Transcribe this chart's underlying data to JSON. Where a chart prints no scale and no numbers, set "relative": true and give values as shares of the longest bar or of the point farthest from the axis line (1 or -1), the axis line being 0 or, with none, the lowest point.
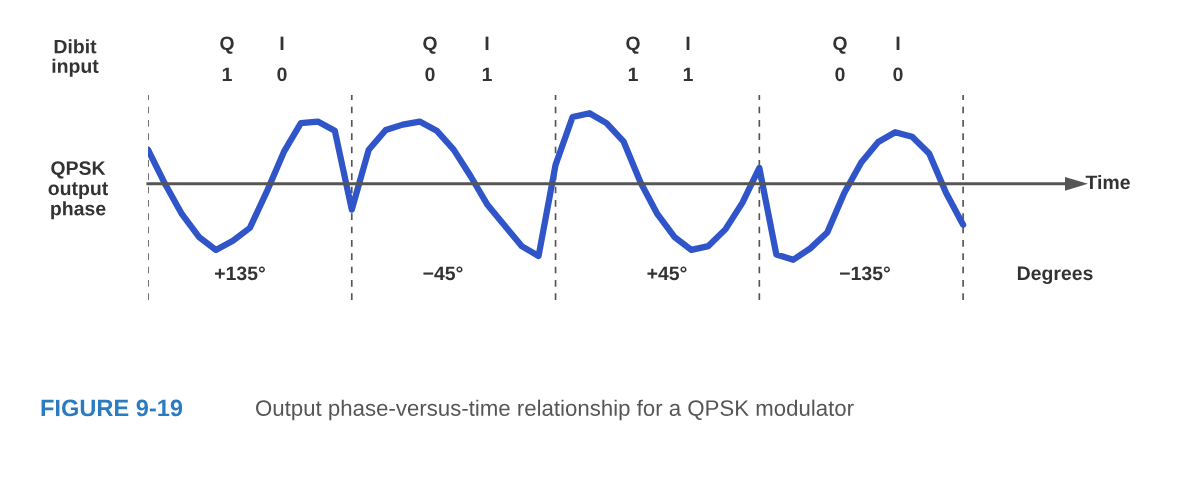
{
  "chart_data": {
    "type": "line",
    "relative": true,
    "title": "FIGURE 9-19",
    "subtitle": "Output phase-versus-time relationship for a QPSK modulator",
    "ylabel": "QPSK\noutput\nphase",
    "tick_labels": false,
    "categories": [
      null,
      null,
      null,
      null,
      null,
      null,
      null,
      null,
      null,
      null,
      null,
      null,
      null,
      null,
      null,
      null,
      null,
      null,
      null,
      null,
      null,
      null,
      null,
      null,
      null,
      null,
      null,
      null,
      null,
      null,
      null,
      null,
      null,
      null,
      null,
      null,
      null,
      null,
      null,
      null,
      null,
      null,
      null,
      null,
      null,
      null,
      null,
      null,
      null
    ],
    "series": [
      {
        "color": "#2f55c8",
        "values": [
          0.45,
          0.0,
          -0.4,
          -0.7,
          -0.87,
          -0.75,
          -0.58,
          -0.1,
          0.42,
          0.8,
          0.82,
          0.7,
          -0.34,
          0.45,
          0.71,
          0.78,
          0.82,
          0.7,
          0.45,
          0.1,
          -0.28,
          -0.55,
          -0.82,
          -0.95,
          0.25,
          0.88,
          0.93,
          0.8,
          0.56,
          0.02,
          -0.4,
          -0.7,
          -0.87,
          -0.82,
          -0.6,
          -0.25,
          0.21,
          -0.93,
          -1.0,
          -0.85,
          -0.64,
          -0.12,
          0.28,
          0.55,
          0.68,
          0.62,
          0.4,
          -0.12,
          -0.54
        ]
      }
    ],
    "grid": "x",
    "annotations": [
      "Dibit\ninput",
      "Q",
      "I",
      "1",
      "0",
      "Q",
      "I",
      "0",
      "1",
      "Q",
      "I",
      "1",
      "1",
      "Q",
      "I",
      "0",
      "0",
      "+135°",
      "−45°",
      "+45°",
      "−135°",
      "Degrees",
      "Time"
    ]
  }
}
